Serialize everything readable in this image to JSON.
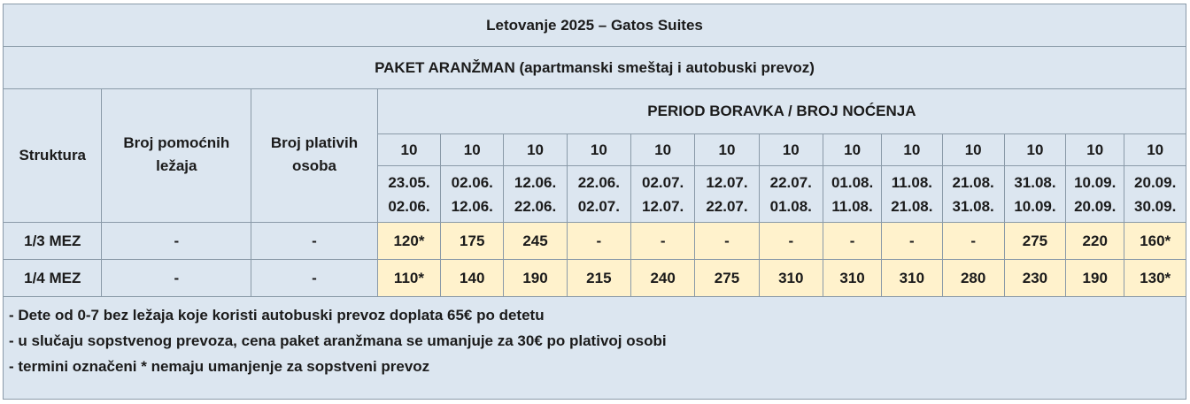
{
  "title": "Letovanje 2025 – Gatos Suites",
  "subtitle": "PAKET ARANŽMAN (apartmanski smeštaj i autobuski prevoz)",
  "headers": {
    "structure": "Struktura",
    "extra_beds": "Broj pomoćnih ležaja",
    "paying": "Broj plativih osoba",
    "period": "PERIOD BORAVKA / BROJ NOĆENJA"
  },
  "periods": [
    {
      "nights": "10",
      "start": "23.05.",
      "end": "02.06."
    },
    {
      "nights": "10",
      "start": "02.06.",
      "end": "12.06."
    },
    {
      "nights": "10",
      "start": "12.06.",
      "end": "22.06."
    },
    {
      "nights": "10",
      "start": "22.06.",
      "end": "02.07."
    },
    {
      "nights": "10",
      "start": "02.07.",
      "end": "12.07."
    },
    {
      "nights": "10",
      "start": "12.07.",
      "end": "22.07."
    },
    {
      "nights": "10",
      "start": "22.07.",
      "end": "01.08."
    },
    {
      "nights": "10",
      "start": "01.08.",
      "end": "11.08."
    },
    {
      "nights": "10",
      "start": "11.08.",
      "end": "21.08."
    },
    {
      "nights": "10",
      "start": "21.08.",
      "end": "31.08."
    },
    {
      "nights": "10",
      "start": "31.08.",
      "end": "10.09."
    },
    {
      "nights": "10",
      "start": "10.09.",
      "end": "20.09."
    },
    {
      "nights": "10",
      "start": "20.09.",
      "end": "30.09."
    }
  ],
  "rows": [
    {
      "structure": "1/3 MEZ",
      "extra": "-",
      "paying": "-",
      "prices": [
        "120*",
        "175",
        "245",
        "-",
        "-",
        "-",
        "-",
        "-",
        "-",
        "-",
        "275",
        "220",
        "160*"
      ]
    },
    {
      "structure": "1/4 MEZ",
      "extra": "-",
      "paying": "-",
      "prices": [
        "110*",
        "140",
        "190",
        "215",
        "240",
        "275",
        "310",
        "310",
        "310",
        "280",
        "230",
        "190",
        "130*"
      ]
    }
  ],
  "notes": [
    "- Dete od 0-7 bez ležaja koje koristi autobuski prevoz doplata 65€ po detetu",
    "- u slučaju sopstvenog prevoza, cena paket aranžmana se umanjuje za 30€ po plativoj osobi",
    "- termini označeni * nemaju umanjenje za sopstveni prevoz"
  ]
}
